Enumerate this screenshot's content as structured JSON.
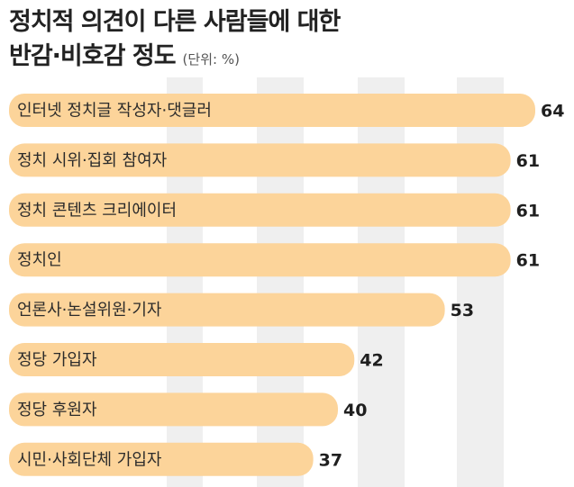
{
  "chart_data": {
    "type": "bar",
    "orientation": "horizontal",
    "title": [
      "정치적 의견이 다른 사람들에 대한",
      "반감·비호감 정도"
    ],
    "unit": "(단위: %)",
    "categories": [
      "인터넷 정치글 작성자·댓글러",
      "정치 시위·집회 참여자",
      "정치 콘텐츠 크리에이터",
      "정치인",
      "언론사·논설위원·기자",
      "정당 가입자",
      "정당 후원자",
      "시민·사회단체 가입자"
    ],
    "values": [
      64,
      61,
      61,
      61,
      53,
      42,
      40,
      37
    ],
    "xlim": [
      0,
      64
    ],
    "grid": true,
    "legend": "none"
  },
  "colors": {
    "bar": "#fcd49a",
    "grid_band": "#efefef",
    "text": "#222222"
  }
}
